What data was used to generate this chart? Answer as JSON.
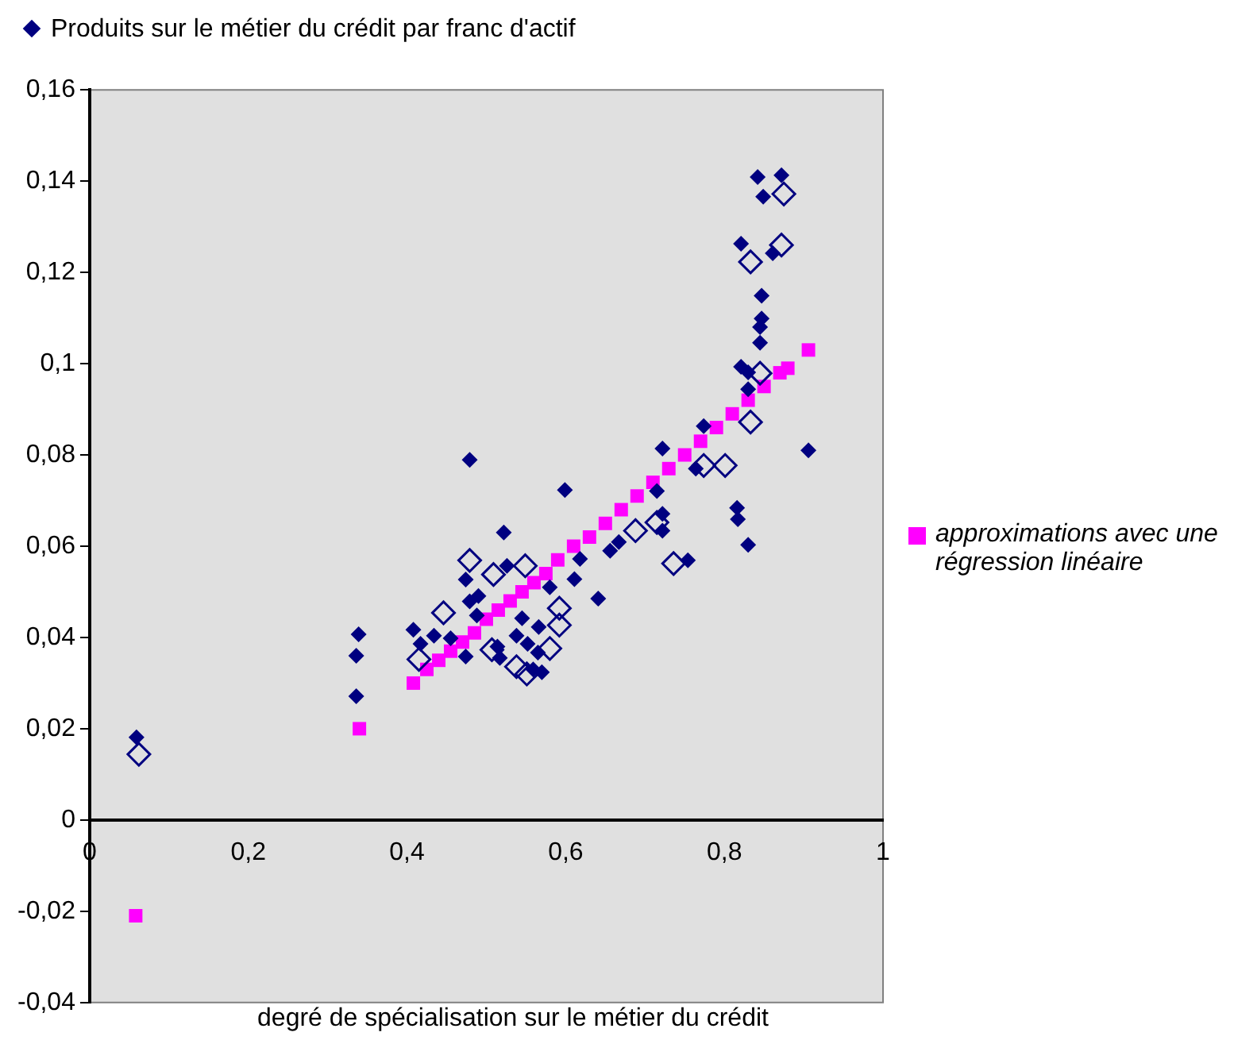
{
  "chart_data": {
    "type": "scatter",
    "xlabel": "degré de spécialisation sur le métier du crédit",
    "xlim": [
      0,
      1
    ],
    "xticks": [
      0,
      {
        "value": 0.2,
        "label": "0,2"
      },
      {
        "value": 0.4,
        "label": "0,4"
      },
      {
        "value": 0.6,
        "label": "0,6"
      },
      {
        "value": 0.8,
        "label": "0,8"
      },
      1
    ],
    "ylim": [
      -0.04,
      0.16
    ],
    "yticks": [
      {
        "value": -0.04,
        "label": "-0,04"
      },
      {
        "value": -0.02,
        "label": "-0,02"
      },
      0,
      {
        "value": 0.02,
        "label": "0,02"
      },
      {
        "value": 0.04,
        "label": "0,04"
      },
      {
        "value": 0.06,
        "label": "0,06"
      },
      {
        "value": 0.08,
        "label": "0,08"
      },
      {
        "value": 0.1,
        "label": "0,1"
      },
      {
        "value": 0.12,
        "label": "0,12"
      },
      {
        "value": 0.14,
        "label": "0,14"
      },
      {
        "value": 0.16,
        "label": "0,16"
      }
    ],
    "grid": false,
    "legend": "right",
    "series": [
      {
        "name": "Produits sur le métier du crédit par franc d'actif",
        "color": "#000080",
        "marker": "diamond",
        "x": [
          0.059,
          0.339,
          0.336,
          0.336,
          0.479,
          0.599,
          0.522,
          0.526,
          0.474,
          0.479,
          0.49,
          0.408,
          0.417,
          0.434,
          0.474,
          0.517,
          0.514,
          0.538,
          0.552,
          0.566,
          0.57,
          0.565,
          0.58,
          0.611,
          0.618,
          0.641,
          0.656,
          0.667,
          0.722,
          0.715,
          0.722,
          0.722,
          0.754,
          0.764,
          0.774,
          0.816,
          0.817,
          0.83,
          0.906,
          0.821,
          0.83,
          0.847,
          0.847,
          0.845,
          0.845,
          0.821,
          0.861,
          0.842,
          0.872,
          0.849,
          0.83,
          0.455,
          0.488,
          0.545,
          0.559
        ],
        "values": [
          0.0181,
          0.0407,
          0.036,
          0.0271,
          0.0789,
          0.0723,
          0.063,
          0.0557,
          0.0527,
          0.0479,
          0.0491,
          0.0417,
          0.0386,
          0.0404,
          0.0358,
          0.0355,
          0.038,
          0.0404,
          0.0386,
          0.0423,
          0.0324,
          0.0367,
          0.051,
          0.0528,
          0.0572,
          0.0485,
          0.059,
          0.0609,
          0.0814,
          0.0721,
          0.0671,
          0.0634,
          0.0569,
          0.077,
          0.0863,
          0.0684,
          0.0659,
          0.0603,
          0.081,
          0.0993,
          0.0981,
          0.1149,
          0.1099,
          0.108,
          0.1046,
          0.1263,
          0.1242,
          0.1409,
          0.1413,
          0.1366,
          0.0944,
          0.0398,
          0.0448,
          0.0442,
          0.033
        ]
      },
      {
        "color": "#000080",
        "marker": "diamond",
        "x": [
          0.062,
          0.479,
          0.509,
          0.549,
          0.446,
          0.415,
          0.507,
          0.538,
          0.551,
          0.58,
          0.592,
          0.592,
          0.688,
          0.715,
          0.736,
          0.774,
          0.801,
          0.833,
          0.833,
          0.872,
          0.875,
          0.845
        ],
        "values": [
          0.0144,
          0.0569,
          0.0538,
          0.0557,
          0.0454,
          0.0352,
          0.0373,
          0.0336,
          0.032,
          0.0376,
          0.0427,
          0.0464,
          0.0634,
          0.0652,
          0.0562,
          0.0777,
          0.0777,
          0.0872,
          0.1223,
          0.126,
          0.1372,
          0.0979
        ]
      },
      {
        "name": "approximations avec une régression linéaire",
        "color": "#ff00ff",
        "marker": "square",
        "x": [
          0.058,
          0.34,
          0.408,
          0.425,
          0.44,
          0.455,
          0.47,
          0.485,
          0.5,
          0.515,
          0.53,
          0.545,
          0.56,
          0.575,
          0.59,
          0.61,
          0.63,
          0.65,
          0.67,
          0.69,
          0.71,
          0.73,
          0.75,
          0.77,
          0.79,
          0.81,
          0.83,
          0.85,
          0.87,
          0.88,
          0.906
        ],
        "values": [
          -0.021,
          0.02,
          0.03,
          0.033,
          0.035,
          0.037,
          0.039,
          0.041,
          0.044,
          0.046,
          0.048,
          0.05,
          0.052,
          0.054,
          0.057,
          0.06,
          0.062,
          0.065,
          0.068,
          0.071,
          0.074,
          0.077,
          0.08,
          0.083,
          0.086,
          0.089,
          0.092,
          0.095,
          0.098,
          0.099,
          0.103
        ]
      }
    ]
  }
}
